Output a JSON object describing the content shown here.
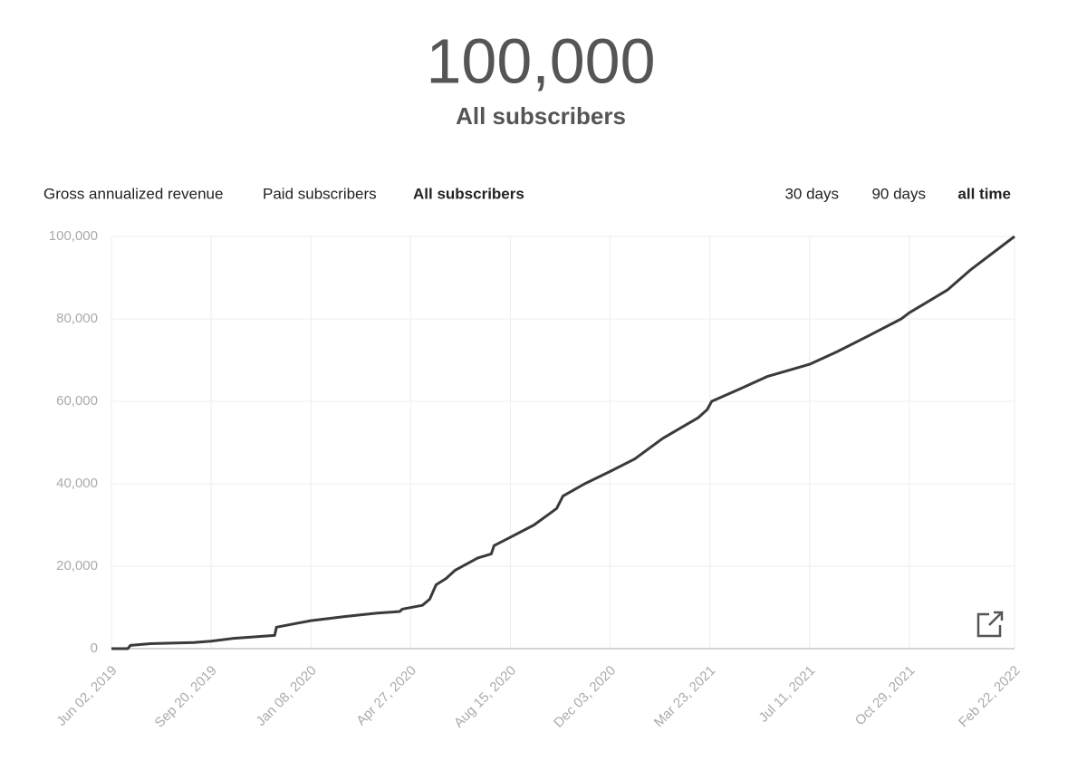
{
  "header": {
    "count": "100,000",
    "label": "All subscribers"
  },
  "tabs": [
    "Gross annualized revenue",
    "Paid subscribers",
    "All subscribers"
  ],
  "ranges": [
    "30 days",
    "90 days",
    "all time"
  ],
  "chart_data": {
    "type": "line",
    "x": [
      "2019-06-02",
      "2019-06-20",
      "2019-06-23",
      "2019-07-15",
      "2019-09-01",
      "2019-09-20",
      "2019-10-15",
      "2019-11-10",
      "2019-11-29",
      "2019-12-01",
      "2019-12-20",
      "2020-01-08",
      "2020-02-15",
      "2020-03-20",
      "2020-04-15",
      "2020-04-18",
      "2020-05-10",
      "2020-05-18",
      "2020-05-25",
      "2020-06-05",
      "2020-06-15",
      "2020-07-10",
      "2020-07-25",
      "2020-07-28",
      "2020-08-15",
      "2020-09-10",
      "2020-10-05",
      "2020-10-12",
      "2020-11-05",
      "2020-12-03",
      "2020-12-30",
      "2021-01-30",
      "2021-03-10",
      "2021-03-20",
      "2021-03-25",
      "2021-04-25",
      "2021-05-25",
      "2021-07-11",
      "2021-08-10",
      "2021-09-15",
      "2021-10-20",
      "2021-10-29",
      "2021-12-10",
      "2022-01-05",
      "2022-02-22"
    ],
    "series": [
      {
        "name": "All subscribers",
        "color": "#3a3a3a",
        "values": [
          0,
          0,
          800,
          1200,
          1500,
          1800,
          2500,
          2900,
          3200,
          5200,
          6000,
          6800,
          7800,
          8600,
          9000,
          9600,
          10500,
          12000,
          15500,
          17000,
          19000,
          22000,
          23000,
          25000,
          27000,
          30000,
          34000,
          37000,
          40000,
          43000,
          46000,
          51000,
          56000,
          58000,
          60000,
          63000,
          66000,
          69000,
          72000,
          76000,
          80000,
          81500,
          87000,
          92000,
          100000
        ]
      }
    ],
    "xlim": [
      "2019-06-02",
      "2022-02-22"
    ],
    "xticks": [
      {
        "value": "2019-06-02",
        "label": "Jun 02, 2019"
      },
      {
        "value": "2019-09-20",
        "label": "Sep 20, 2019"
      },
      {
        "value": "2020-01-08",
        "label": "Jan 08, 2020"
      },
      {
        "value": "2020-04-27",
        "label": "Apr 27, 2020"
      },
      {
        "value": "2020-08-15",
        "label": "Aug 15, 2020"
      },
      {
        "value": "2020-12-03",
        "label": "Dec 03, 2020"
      },
      {
        "value": "2021-03-23",
        "label": "Mar 23, 2021"
      },
      {
        "value": "2021-07-11",
        "label": "Jul 11, 2021"
      },
      {
        "value": "2021-10-29",
        "label": "Oct 29, 2021"
      },
      {
        "value": "2022-02-22",
        "label": "Feb 22, 2022"
      }
    ],
    "ylim": [
      0,
      100000
    ],
    "yticks": [
      0,
      {
        "value": 20000,
        "label": "20,000"
      },
      {
        "value": 40000,
        "label": "40,000"
      },
      {
        "value": 60000,
        "label": "60,000"
      },
      {
        "value": 80000,
        "label": "80,000"
      },
      {
        "value": 100000,
        "label": "100,000"
      }
    ],
    "grid": true
  }
}
